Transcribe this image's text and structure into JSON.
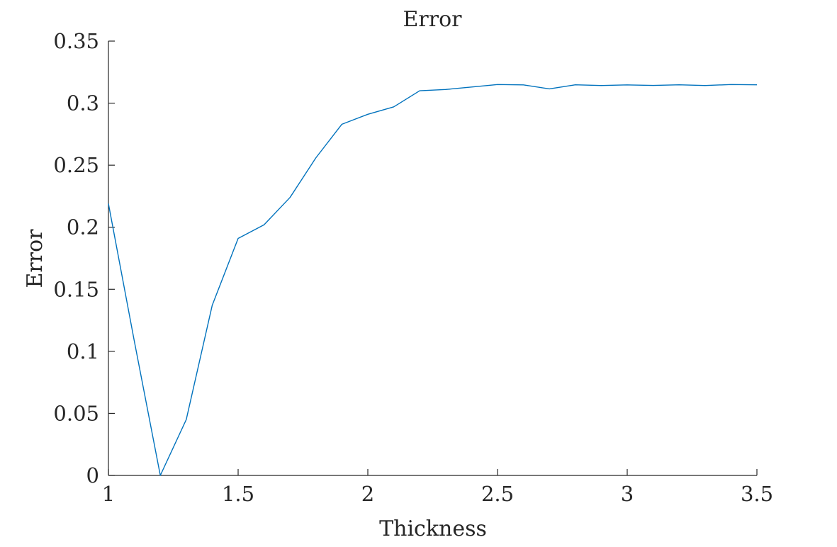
{
  "chart_data": {
    "type": "line",
    "title": "Error",
    "xlabel": "Thickness",
    "ylabel": "Error",
    "xlim": [
      1,
      3.5
    ],
    "ylim": [
      0,
      0.35
    ],
    "xticks": [
      1,
      1.5,
      2,
      2.5,
      3,
      3.5
    ],
    "xtick_labels": [
      "1",
      "1.5",
      "2",
      "2.5",
      "3",
      "3.5"
    ],
    "yticks": [
      0,
      0.05,
      0.1,
      0.15,
      0.2,
      0.25,
      0.3,
      0.35
    ],
    "ytick_labels": [
      "0",
      "0.05",
      "0.1",
      "0.15",
      "0.2",
      "0.25",
      "0.3",
      "0.35"
    ],
    "grid": false,
    "legend": "none",
    "series": [
      {
        "color": "#0072BD",
        "x": [
          1.0,
          1.1,
          1.2,
          1.3,
          1.4,
          1.5,
          1.6,
          1.7,
          1.8,
          1.9,
          2.0,
          2.1,
          2.2,
          2.3,
          2.4,
          2.5,
          2.6,
          2.7,
          2.8,
          2.9,
          3.0,
          3.1,
          3.2,
          3.3,
          3.4,
          3.5
        ],
        "y": [
          0.219,
          0.108,
          0.0,
          0.045,
          0.137,
          0.191,
          0.202,
          0.224,
          0.256,
          0.283,
          0.291,
          0.297,
          0.31,
          0.311,
          0.313,
          0.315,
          0.3147,
          0.3115,
          0.3148,
          0.3142,
          0.3147,
          0.3143,
          0.3148,
          0.3142,
          0.315,
          0.3148
        ]
      }
    ]
  },
  "colors": {
    "axis": "#262626",
    "line": "#0072BD"
  }
}
